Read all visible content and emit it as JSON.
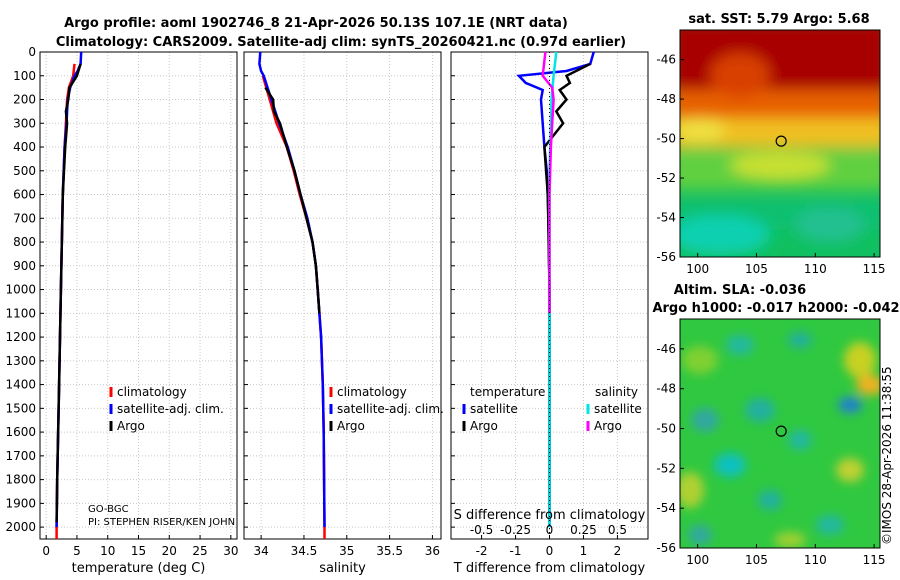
{
  "titles": {
    "line1": "Argo profile: aoml 1902746_8 21-Apr-2026 50.13S 107.1E (NRT data)",
    "line2": "Climatology: CARS2009. Satellite-adj clim: synTS_20260421.nc (0.97d earlier)"
  },
  "colors": {
    "climatology": "#ff0000",
    "satellite": "#0000ff",
    "argo": "#000000",
    "sat_salinity": "#00e5e5",
    "argo_salinity": "#ff00ff"
  },
  "credits": {
    "group": "GO-BGC",
    "pi": "PI: STEPHEN RISER/KEN JOHN"
  },
  "footer": "©IMOS 28-Apr-2026 11:38:55",
  "legend_labels": {
    "climatology": "climatology",
    "satellite": "satellite-adj. clim.",
    "argo": "Argo",
    "temperature": "temperature",
    "salinity": "salinity",
    "satellite_short": "satellite"
  },
  "chart_data": [
    {
      "type": "line",
      "id": "temperature",
      "xlabel": "temperature (deg C)",
      "ylabel": "",
      "xlim": [
        -1,
        31
      ],
      "ylim": [
        2050,
        0
      ],
      "xticks": [
        0,
        5,
        10,
        15,
        20,
        25,
        30
      ],
      "yticks": [
        0,
        100,
        200,
        300,
        400,
        500,
        600,
        700,
        800,
        900,
        1000,
        1100,
        1200,
        1300,
        1400,
        1500,
        1600,
        1700,
        1800,
        1900,
        2000
      ],
      "series": [
        {
          "name": "climatology",
          "color": "#ff0000",
          "depth": [
            50,
            100,
            150,
            200,
            300,
            400,
            600,
            1000,
            1400,
            1800,
            2000,
            2050
          ],
          "values": [
            4.6,
            4.4,
            3.7,
            3.4,
            3.2,
            3.0,
            2.7,
            2.4,
            2.1,
            1.8,
            1.7,
            1.7
          ]
        },
        {
          "name": "satellite-adj. clim.",
          "color": "#0000ff",
          "depth": [
            0,
            50,
            80,
            100,
            150,
            200,
            300,
            400,
            600,
            1000,
            1400,
            1800,
            2000
          ],
          "values": [
            5.7,
            5.6,
            5.1,
            4.6,
            3.9,
            3.5,
            3.3,
            3.0,
            2.7,
            2.4,
            2.1,
            1.8,
            1.7
          ]
        },
        {
          "name": "Argo",
          "color": "#000000",
          "depth": [
            50,
            100,
            150,
            200,
            250,
            300,
            400,
            500,
            600,
            1000,
            1400,
            1800,
            1980
          ],
          "values": [
            5.6,
            5.0,
            3.8,
            3.6,
            3.2,
            3.4,
            3.1,
            2.9,
            2.7,
            2.4,
            2.1,
            1.8,
            1.7
          ]
        }
      ]
    },
    {
      "type": "line",
      "id": "salinity",
      "xlabel": "salinity",
      "ylabel": "",
      "xlim": [
        33.8,
        36.1
      ],
      "ylim": [
        2050,
        0
      ],
      "xticks": [
        34,
        34.5,
        35,
        35.5,
        36
      ],
      "series": [
        {
          "name": "climatology",
          "color": "#ff0000",
          "depth": [
            100,
            200,
            300,
            400,
            500,
            600,
            700,
            800,
            900,
            1000,
            1200,
            1400,
            1600,
            2000,
            2050
          ],
          "values": [
            34.02,
            34.1,
            34.18,
            34.3,
            34.38,
            34.45,
            34.53,
            34.6,
            34.64,
            34.66,
            34.7,
            34.72,
            34.73,
            34.74,
            34.74
          ]
        },
        {
          "name": "satellite-adj. clim.",
          "color": "#0000ff",
          "depth": [
            0,
            50,
            80,
            100,
            200,
            300,
            400,
            500,
            600,
            700,
            800,
            900,
            1000,
            1200,
            1400,
            1600,
            2000
          ],
          "values": [
            33.99,
            33.98,
            34.0,
            34.03,
            34.12,
            34.21,
            34.31,
            34.39,
            34.46,
            34.54,
            34.6,
            34.64,
            34.66,
            34.7,
            34.72,
            34.73,
            34.74
          ]
        },
        {
          "name": "Argo",
          "color": "#000000",
          "depth": [
            150,
            200,
            250,
            300,
            400,
            500,
            600,
            700,
            800,
            900,
            1000,
            1100
          ],
          "values": [
            34.05,
            34.14,
            34.15,
            34.22,
            34.3,
            34.39,
            34.46,
            34.53,
            34.6,
            34.64,
            34.66,
            34.68
          ]
        }
      ]
    },
    {
      "type": "line",
      "id": "difference",
      "xlabel": "T difference from climatology",
      "top_xlabel": "S difference from climatology",
      "xlim": [
        -2.9,
        2.9
      ],
      "ylim": [
        2050,
        0
      ],
      "xticks": [
        -2,
        -1,
        0,
        1,
        2
      ],
      "top_xticks": [
        -0.5,
        -0.25,
        0,
        0.25,
        0.5
      ],
      "top_xlim": [
        -0.725,
        0.725
      ],
      "series": [
        {
          "name": "temperature satellite",
          "color": "#0000ff",
          "axis": "T",
          "depth": [
            0,
            50,
            80,
            100,
            130,
            160,
            200,
            300,
            400,
            500,
            700,
            1000,
            1500,
            2000
          ],
          "values": [
            1.3,
            1.2,
            0.5,
            -0.9,
            -0.7,
            -0.2,
            -0.25,
            -0.2,
            -0.15,
            -0.08,
            -0.03,
            0.0,
            0.0,
            0.0
          ]
        },
        {
          "name": "temperature Argo",
          "color": "#000000",
          "axis": "T",
          "depth": [
            50,
            100,
            130,
            160,
            200,
            250,
            300,
            400,
            500,
            600,
            1000,
            1500,
            1980
          ],
          "values": [
            1.2,
            0.5,
            0.6,
            0.3,
            0.5,
            0.2,
            0.4,
            -0.15,
            -0.1,
            -0.05,
            0.0,
            0.0,
            0.0
          ]
        },
        {
          "name": "salinity satellite",
          "color": "#00e5e5",
          "axis": "S",
          "depth": [
            0,
            100,
            200,
            300,
            500,
            800,
            1200,
            2000
          ],
          "values": [
            0.05,
            0.03,
            0.015,
            0.01,
            0.0,
            0.0,
            0.0,
            0.0
          ]
        },
        {
          "name": "salinity Argo",
          "color": "#ff00ff",
          "axis": "S",
          "depth": [
            0,
            100,
            150,
            200,
            300,
            400,
            600,
            800,
            1000,
            1100
          ],
          "values": [
            -0.03,
            -0.05,
            0.02,
            0.03,
            0.02,
            0.01,
            0.0,
            0.0,
            0.0,
            0.0
          ]
        }
      ]
    },
    {
      "type": "heatmap",
      "id": "sst-map",
      "title": "sat. SST: 5.79 Argo: 5.68",
      "xticks": [
        100,
        105,
        110,
        115
      ],
      "yticks": [
        -46,
        -48,
        -50,
        -52,
        -54,
        -56
      ],
      "xlim": [
        98.5,
        115.5
      ],
      "ylim": [
        -56,
        -44.5
      ],
      "argo_position": [
        107.1,
        -50.13
      ]
    },
    {
      "type": "heatmap",
      "id": "sla-map",
      "title": "Altim. SLA: -0.036",
      "subtitle": "Argo h1000: -0.017 h2000: -0.042",
      "xticks": [
        100,
        105,
        110,
        115
      ],
      "yticks": [
        -46,
        -48,
        -50,
        -52,
        -54,
        -56
      ],
      "xlim": [
        98.5,
        115.5
      ],
      "ylim": [
        -56,
        -44.5
      ],
      "argo_position": [
        107.1,
        -50.13
      ]
    }
  ]
}
